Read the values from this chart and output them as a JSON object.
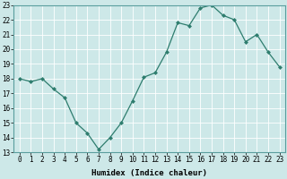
{
  "x": [
    0,
    1,
    2,
    3,
    4,
    5,
    6,
    7,
    8,
    9,
    10,
    11,
    12,
    13,
    14,
    15,
    16,
    17,
    18,
    19,
    20,
    21,
    22,
    23
  ],
  "y": [
    18.0,
    17.8,
    18.0,
    17.3,
    16.7,
    15.0,
    14.3,
    13.2,
    14.0,
    15.0,
    16.5,
    18.1,
    18.4,
    19.8,
    21.8,
    21.6,
    22.8,
    23.0,
    22.3,
    22.0,
    20.5,
    21.0,
    19.8,
    18.8
  ],
  "line_color": "#2e7d6e",
  "marker_color": "#2e7d6e",
  "bg_color": "#cde8e8",
  "grid_color": "#b0d8d8",
  "grid_major_color": "#ffffff",
  "xlabel": "Humidex (Indice chaleur)",
  "ylim": [
    13,
    23
  ],
  "xlim_min": -0.5,
  "xlim_max": 23.5,
  "yticks": [
    13,
    14,
    15,
    16,
    17,
    18,
    19,
    20,
    21,
    22,
    23
  ],
  "xticks": [
    0,
    1,
    2,
    3,
    4,
    5,
    6,
    7,
    8,
    9,
    10,
    11,
    12,
    13,
    14,
    15,
    16,
    17,
    18,
    19,
    20,
    21,
    22,
    23
  ],
  "xtick_labels": [
    "0",
    "1",
    "2",
    "3",
    "4",
    "5",
    "6",
    "7",
    "8",
    "9",
    "10",
    "11",
    "12",
    "13",
    "14",
    "15",
    "16",
    "17",
    "18",
    "19",
    "20",
    "21",
    "22",
    "23"
  ],
  "ytick_labels": [
    "13",
    "14",
    "15",
    "16",
    "17",
    "18",
    "19",
    "20",
    "21",
    "22",
    "23"
  ],
  "label_fontsize": 6.5,
  "tick_fontsize": 5.5,
  "marker_size": 2.0,
  "line_width": 0.9
}
